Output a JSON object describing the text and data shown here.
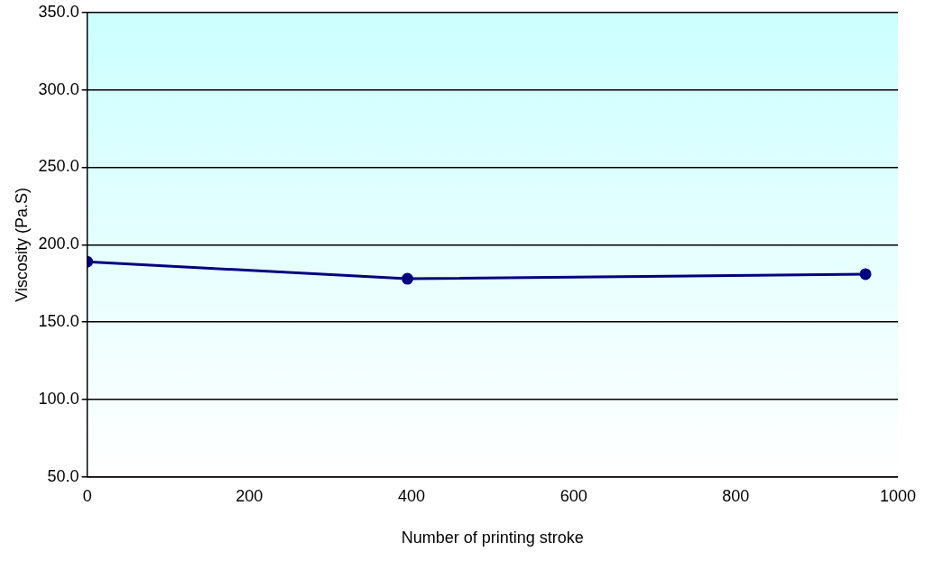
{
  "chart_data": {
    "type": "line",
    "xlabel": "Number of printing stroke",
    "ylabel": "Viscosity (Pa.S)",
    "x": [
      0,
      395,
      960
    ],
    "series": [
      {
        "color": "#000080",
        "values": [
          189,
          178,
          181
        ]
      }
    ],
    "xlim": [
      0,
      1000
    ],
    "xticks": [
      0,
      200,
      400,
      600,
      800,
      1000
    ],
    "ylim": [
      50,
      350
    ],
    "yticks": [
      {
        "value": 50,
        "label": "50.0"
      },
      {
        "value": 100,
        "label": "100.0"
      },
      {
        "value": 150,
        "label": "150.0"
      },
      {
        "value": 200,
        "label": "200.0"
      },
      {
        "value": 250,
        "label": "250.0"
      },
      {
        "value": 300,
        "label": "300.0"
      },
      {
        "value": 350,
        "label": "350.0"
      }
    ],
    "grid": "y",
    "marker": "circle",
    "line_style": "solid",
    "legend": false
  }
}
